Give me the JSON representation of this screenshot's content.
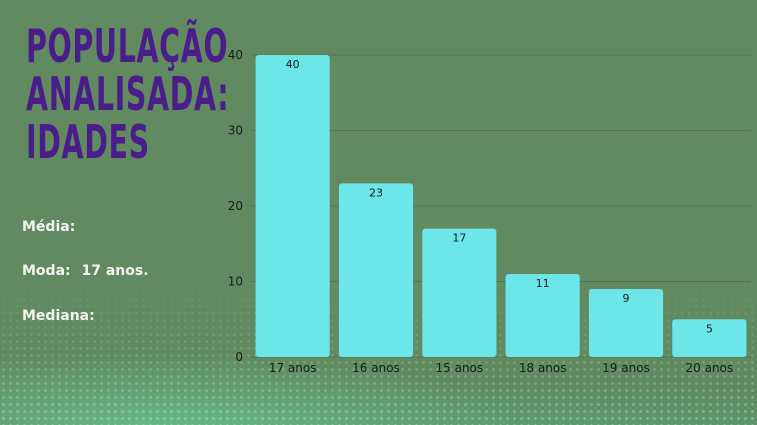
{
  "title_lines": [
    "População",
    "analisada:",
    "Idades"
  ],
  "stats": {
    "media_label": "Média:",
    "moda_label": "Moda:",
    "moda_value": "17 anos.",
    "mediana_label": "Mediana:"
  },
  "colors": {
    "background": "#618a60",
    "bar": "#6ce6e8",
    "title": "#4b1d8a",
    "stat_text": "#f2f5f0",
    "axis_text": "#1a1a1a"
  },
  "chart_data": {
    "type": "bar",
    "categories": [
      "17 anos",
      "16 anos",
      "15 anos",
      "18 anos",
      "19 anos",
      "20 anos"
    ],
    "values": [
      40,
      23,
      17,
      11,
      9,
      5
    ],
    "data_labels": [
      "40",
      "23",
      "17",
      "11",
      "9",
      "5"
    ],
    "yticks": [
      "0",
      "10",
      "20",
      "30",
      "40"
    ],
    "ylim": [
      0,
      40
    ],
    "grid": true,
    "legend": "none",
    "title": "",
    "xlabel": "",
    "ylabel": ""
  }
}
